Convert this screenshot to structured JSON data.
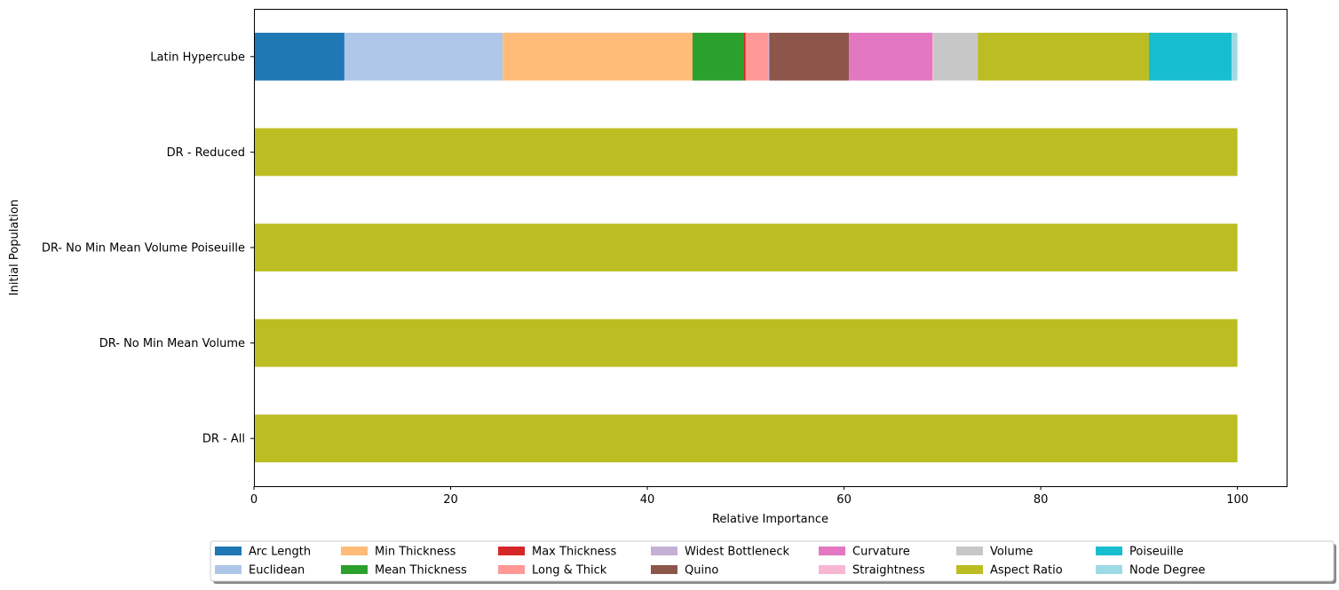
{
  "chart_data": {
    "type": "bar",
    "orientation": "horizontal",
    "stacked": true,
    "title": "",
    "xlabel": "Relative Importance",
    "ylabel": "Initial Population",
    "xlim": [
      0,
      105
    ],
    "xticks": [
      0,
      20,
      40,
      60,
      80,
      100
    ],
    "categories": [
      "DR - All",
      "DR- No Min Mean Volume",
      "DR- No Min Mean Volume Poiseuille",
      "DR - Reduced",
      "Latin Hypercube"
    ],
    "grid": false,
    "legend_position": "bottom-center",
    "series": [
      {
        "name": "Arc Length",
        "color": "#1f77b4",
        "values": [
          0,
          0,
          0,
          0,
          9.2
        ]
      },
      {
        "name": "Euclidean",
        "color": "#aec7e8",
        "values": [
          0,
          0,
          0,
          0,
          16.1
        ]
      },
      {
        "name": "Min Thickness",
        "color": "#ffbb78",
        "values": [
          0,
          0,
          0,
          0,
          19.3
        ]
      },
      {
        "name": "Mean Thickness",
        "color": "#2ca02c",
        "values": [
          0,
          0,
          0,
          0,
          5.2
        ]
      },
      {
        "name": "Max Thickness",
        "color": "#d62728",
        "values": [
          0,
          0,
          0,
          0,
          0.2
        ]
      },
      {
        "name": "Long & Thick",
        "color": "#ff9896",
        "values": [
          0,
          0,
          0,
          0,
          2.3
        ]
      },
      {
        "name": "Widest Bottleneck",
        "color": "#c5b0d5",
        "values": [
          0,
          0,
          0,
          0,
          0.1
        ]
      },
      {
        "name": "Quino",
        "color": "#8c564b",
        "values": [
          0,
          0,
          0,
          0,
          8.1
        ]
      },
      {
        "name": "Curvature",
        "color": "#e377c2",
        "values": [
          0,
          0,
          0,
          0,
          8.5
        ]
      },
      {
        "name": "Straightness",
        "color": "#f7b6d2",
        "values": [
          0,
          0,
          0,
          0,
          0.1
        ]
      },
      {
        "name": "Volume",
        "color": "#c7c7c7",
        "values": [
          0,
          0,
          0,
          0,
          4.5
        ]
      },
      {
        "name": "Aspect Ratio",
        "color": "#bcbd22",
        "values": [
          100,
          100,
          100,
          100,
          17.4
        ]
      },
      {
        "name": "Poiseuille",
        "color": "#17becf",
        "values": [
          0,
          0,
          0,
          0,
          8.4
        ]
      },
      {
        "name": "Node Degree",
        "color": "#9edae5",
        "values": [
          0,
          0,
          0,
          0,
          0.6
        ]
      }
    ]
  }
}
